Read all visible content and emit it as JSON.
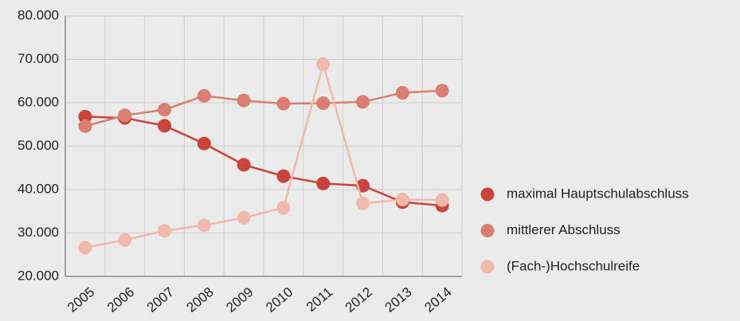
{
  "chart_data": {
    "type": "line",
    "categories": [
      "2005",
      "2006",
      "2007",
      "2008",
      "2009",
      "2010",
      "2011",
      "2012",
      "2013",
      "2014"
    ],
    "series": [
      {
        "name": "maximal Hauptschulabschluss",
        "color": "#c9443b",
        "values": [
          56800,
          56500,
          54700,
          50600,
          45700,
          43100,
          41400,
          40900,
          37100,
          36300
        ]
      },
      {
        "name": "mittlerer Abschluss",
        "color": "#d97e70",
        "values": [
          54600,
          57100,
          58400,
          61600,
          60500,
          59800,
          59900,
          60200,
          62300,
          62800
        ]
      },
      {
        "name": "(Fach-)Hochschulreife",
        "color": "#efb9ab",
        "values": [
          26600,
          28400,
          30500,
          31800,
          33500,
          35800,
          68900,
          36800,
          37700,
          37600
        ]
      }
    ],
    "ylim": [
      20000,
      80000
    ],
    "yticks": [
      {
        "value": 20000,
        "label": "20.000"
      },
      {
        "value": 30000,
        "label": "30.000"
      },
      {
        "value": 40000,
        "label": "40.000"
      },
      {
        "value": 50000,
        "label": "50.000"
      },
      {
        "value": 60000,
        "label": "60.000"
      },
      {
        "value": 70000,
        "label": "70.000"
      },
      {
        "value": 80000,
        "label": "80.000"
      }
    ],
    "grid": true,
    "legend": "right"
  }
}
